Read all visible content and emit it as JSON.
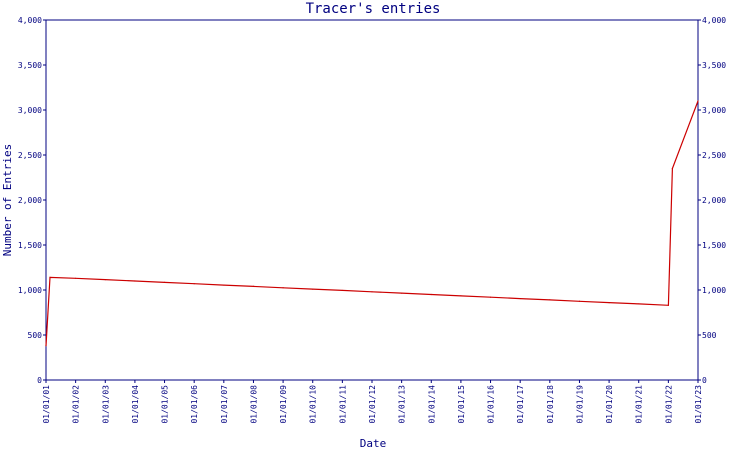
{
  "chart_data": {
    "type": "line",
    "title": "Tracer's entries",
    "xlabel": "Date",
    "ylabel": "Number of Entries",
    "x_ticks": [
      "01/01/01",
      "01/01/02",
      "01/01/03",
      "01/01/04",
      "01/01/05",
      "01/01/06",
      "01/01/07",
      "01/01/08",
      "01/01/09",
      "01/01/10",
      "01/01/11",
      "01/01/12",
      "01/01/13",
      "01/01/14",
      "01/01/15",
      "01/01/16",
      "01/01/17",
      "01/01/18",
      "01/01/19",
      "01/01/20",
      "01/01/21",
      "01/01/22",
      "01/01/23"
    ],
    "y_ticks": [
      "0",
      "500",
      "1,000",
      "1,500",
      "2,000",
      "2,500",
      "3,000",
      "3,500",
      "4,000"
    ],
    "ylim": [
      0,
      4000
    ],
    "grid": false,
    "line_color": "#cc0000",
    "axis_color": "#000080",
    "series": [
      {
        "points": [
          {
            "x": "01/01/01",
            "y": 380
          },
          {
            "x": "01/01/01",
            "y": 1140
          },
          {
            "x": "01/01/02",
            "y": 1130
          },
          {
            "x": "01/01/03",
            "y": 1115
          },
          {
            "x": "01/01/04",
            "y": 1100
          },
          {
            "x": "01/01/05",
            "y": 1085
          },
          {
            "x": "01/01/06",
            "y": 1070
          },
          {
            "x": "01/01/07",
            "y": 1055
          },
          {
            "x": "01/01/08",
            "y": 1040
          },
          {
            "x": "01/01/09",
            "y": 1025
          },
          {
            "x": "01/01/10",
            "y": 1010
          },
          {
            "x": "01/01/11",
            "y": 995
          },
          {
            "x": "01/01/12",
            "y": 980
          },
          {
            "x": "01/01/13",
            "y": 965
          },
          {
            "x": "01/01/14",
            "y": 950
          },
          {
            "x": "01/01/15",
            "y": 935
          },
          {
            "x": "01/01/16",
            "y": 920
          },
          {
            "x": "01/01/17",
            "y": 905
          },
          {
            "x": "01/01/18",
            "y": 890
          },
          {
            "x": "01/01/19",
            "y": 875
          },
          {
            "x": "01/01/20",
            "y": 860
          },
          {
            "x": "01/01/21",
            "y": 845
          },
          {
            "x": "01/01/22",
            "y": 830
          },
          {
            "x": "01/01/22",
            "y": 2350
          },
          {
            "x": "01/01/23",
            "y": 3100
          }
        ]
      }
    ]
  }
}
